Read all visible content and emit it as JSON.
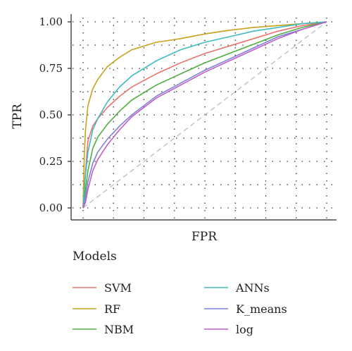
{
  "chart_data": {
    "type": "line",
    "xlabel": "FPR",
    "ylabel": "TPR",
    "xlim": [
      0,
      1
    ],
    "ylim": [
      0,
      1
    ],
    "x_ticks_labeled": false,
    "y_ticks": [
      "0.00",
      "0.25",
      "0.50",
      "0.75",
      "1.00"
    ],
    "y_tick_values": [
      0,
      0.25,
      0.5,
      0.75,
      1.0
    ],
    "grid": "dotted",
    "diagonal_reference": true,
    "diagonal_color": "#bbbbbb",
    "legend_title": "Models",
    "legend_position": "bottom",
    "series": [
      {
        "name": "SVM",
        "color": "#e8746b",
        "x": [
          0,
          0.01,
          0.02,
          0.04,
          0.06,
          0.1,
          0.15,
          0.2,
          0.3,
          0.4,
          0.5,
          0.6,
          0.7,
          0.8,
          0.9,
          1.0
        ],
        "y": [
          0,
          0.2,
          0.36,
          0.44,
          0.48,
          0.54,
          0.6,
          0.65,
          0.72,
          0.78,
          0.83,
          0.87,
          0.91,
          0.95,
          0.98,
          1.0
        ]
      },
      {
        "name": "RF",
        "color": "#c8a21c",
        "x": [
          0,
          0.005,
          0.01,
          0.02,
          0.04,
          0.06,
          0.1,
          0.15,
          0.2,
          0.3,
          0.4,
          0.5,
          0.6,
          0.7,
          0.8,
          0.9,
          1.0
        ],
        "y": [
          0,
          0.28,
          0.42,
          0.55,
          0.64,
          0.69,
          0.76,
          0.81,
          0.85,
          0.89,
          0.91,
          0.935,
          0.955,
          0.97,
          0.98,
          0.99,
          1.0
        ]
      },
      {
        "name": "NBM",
        "color": "#4fae3d",
        "x": [
          0,
          0.01,
          0.02,
          0.04,
          0.06,
          0.1,
          0.15,
          0.2,
          0.3,
          0.4,
          0.5,
          0.6,
          0.7,
          0.8,
          0.9,
          1.0
        ],
        "y": [
          0,
          0.1,
          0.2,
          0.32,
          0.38,
          0.45,
          0.52,
          0.58,
          0.66,
          0.72,
          0.78,
          0.83,
          0.88,
          0.93,
          0.97,
          1.0
        ]
      },
      {
        "name": "ANNs",
        "color": "#3fbac0",
        "x": [
          0,
          0.01,
          0.02,
          0.04,
          0.06,
          0.1,
          0.15,
          0.2,
          0.3,
          0.4,
          0.5,
          0.6,
          0.7,
          0.8,
          0.9,
          1.0
        ],
        "y": [
          0,
          0.18,
          0.3,
          0.42,
          0.48,
          0.57,
          0.65,
          0.71,
          0.79,
          0.85,
          0.89,
          0.92,
          0.95,
          0.97,
          0.99,
          1.0
        ]
      },
      {
        "name": "K_means",
        "color": "#7b82d8",
        "x": [
          0,
          0.01,
          0.02,
          0.04,
          0.06,
          0.1,
          0.15,
          0.2,
          0.3,
          0.4,
          0.5,
          0.6,
          0.7,
          0.8,
          0.9,
          1.0
        ],
        "y": [
          0,
          0.06,
          0.14,
          0.24,
          0.3,
          0.37,
          0.44,
          0.5,
          0.6,
          0.67,
          0.74,
          0.8,
          0.86,
          0.92,
          0.96,
          1.0
        ]
      },
      {
        "name": "log",
        "color": "#c05ec6",
        "x": [
          0,
          0.01,
          0.02,
          0.04,
          0.06,
          0.1,
          0.15,
          0.2,
          0.3,
          0.4,
          0.5,
          0.6,
          0.7,
          0.8,
          0.9,
          1.0
        ],
        "y": [
          0,
          0.03,
          0.1,
          0.2,
          0.26,
          0.34,
          0.42,
          0.49,
          0.59,
          0.66,
          0.73,
          0.79,
          0.85,
          0.91,
          0.96,
          1.0
        ]
      }
    ]
  }
}
